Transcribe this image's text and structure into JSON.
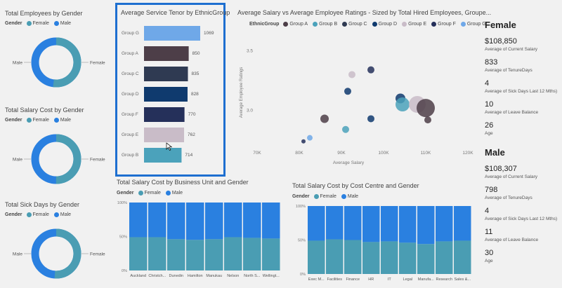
{
  "colors": {
    "female": "#4a9db3",
    "male": "#2a80e0",
    "accent": "#1e6fd0"
  },
  "donuts": [
    {
      "title": "Total Employees by Gender",
      "legend_title": "Gender",
      "legend": [
        "Female",
        "Male"
      ],
      "labels": {
        "left": "Male",
        "right": "Female"
      },
      "female_share": 0.52
    },
    {
      "title": "Total Salary Cost by Gender",
      "legend_title": "Gender",
      "legend": [
        "Female",
        "Male"
      ],
      "labels": {
        "left": "Male",
        "right": "Female"
      },
      "female_share": 0.5
    },
    {
      "title": "Total Sick Days by Gender",
      "legend_title": "Gender",
      "legend": [
        "Female",
        "Male"
      ],
      "labels": {
        "left": "Male",
        "right": "Female"
      },
      "female_share": 0.51
    }
  ],
  "bar_chart": {
    "title": "Average Service Tenor by EthnicGroup",
    "categories": [
      "Group G",
      "Group A",
      "Group C",
      "Group D",
      "Group F",
      "Group E",
      "Group B"
    ],
    "values": [
      1069,
      850,
      835,
      828,
      770,
      762,
      714
    ],
    "colors": [
      "#6fa8e8",
      "#4d3e48",
      "#2f3a52",
      "#0f3a6e",
      "#25305a",
      "#c9bcc8",
      "#4ba2bb"
    ]
  },
  "scatter": {
    "title": "Average Salary vs Average Employee Ratings - Sized by Total Hired Employees, Groupe...",
    "legend_title": "EthnicGroup",
    "legend": [
      {
        "name": "Group A",
        "color": "#4d3e48"
      },
      {
        "name": "Group B",
        "color": "#4ba2bb"
      },
      {
        "name": "Group C",
        "color": "#2f3a52"
      },
      {
        "name": "Group D",
        "color": "#0f3a6e"
      },
      {
        "name": "Group E",
        "color": "#c9bcc8"
      },
      {
        "name": "Group F",
        "color": "#25305a"
      },
      {
        "name": "Group G",
        "color": "#6fa8e8"
      }
    ],
    "xlabel": "Average Salary",
    "ylabel": "Average Employee Ratings",
    "xticks": [
      "70K",
      "80K",
      "90K",
      "100K",
      "110K",
      "120K"
    ],
    "yticks": [
      "3.5",
      "3.0"
    ],
    "points": [
      {
        "x": 81000,
        "y": 2.74,
        "r": 3,
        "c": "#25305a"
      },
      {
        "x": 82500,
        "y": 2.77,
        "r": 4,
        "c": "#6fa8e8"
      },
      {
        "x": 86000,
        "y": 2.93,
        "r": 6,
        "c": "#4d3e48"
      },
      {
        "x": 91000,
        "y": 2.84,
        "r": 5,
        "c": "#4ba2bb"
      },
      {
        "x": 91500,
        "y": 3.16,
        "r": 5,
        "c": "#0f3a6e"
      },
      {
        "x": 92500,
        "y": 3.3,
        "r": 5,
        "c": "#c9bcc8"
      },
      {
        "x": 97000,
        "y": 3.34,
        "r": 5,
        "c": "#25305a"
      },
      {
        "x": 97000,
        "y": 2.93,
        "r": 5,
        "c": "#0f3a6e"
      },
      {
        "x": 104000,
        "y": 3.1,
        "r": 7,
        "c": "#0f3a6e"
      },
      {
        "x": 104500,
        "y": 3.05,
        "r": 10,
        "c": "#4ba2bb"
      },
      {
        "x": 108000,
        "y": 3.05,
        "r": 12,
        "c": "#c9bcc8"
      },
      {
        "x": 110000,
        "y": 3.02,
        "r": 13,
        "c": "#4d3e48"
      },
      {
        "x": 110500,
        "y": 2.92,
        "r": 5,
        "c": "#4d3e48"
      }
    ],
    "xlim": [
      70000,
      120000
    ],
    "ylim": [
      2.68,
      3.62
    ]
  },
  "stack_bu": {
    "title": "Total Salary Cost by Business Unit and Gender",
    "legend_title": "Gender",
    "legend": [
      "Female",
      "Male"
    ],
    "yticks": [
      "100%",
      "50%",
      "0%"
    ],
    "categories": [
      "Auckland",
      "Christch...",
      "Dunedin",
      "Hamilton",
      "Manukau",
      "Nelson",
      "North S...",
      "Wellingt..."
    ],
    "female": [
      0.49,
      0.49,
      0.46,
      0.45,
      0.46,
      0.49,
      0.48,
      0.47
    ]
  },
  "stack_cc": {
    "title": "Total Salary Cost by Cost Centre and Gender",
    "legend_title": "Gender",
    "legend": [
      "Female",
      "Male"
    ],
    "yticks": [
      "100%",
      "50%",
      "0%"
    ],
    "categories": [
      "Exec M...",
      "Facilities",
      "Finance",
      "HR",
      "IT",
      "Legal",
      "Manufa...",
      "Research",
      "Sales &..."
    ],
    "female": [
      0.49,
      0.51,
      0.5,
      0.47,
      0.48,
      0.46,
      0.44,
      0.48,
      0.49
    ]
  },
  "kpi": [
    {
      "gender": "Female",
      "items": [
        {
          "value": "$108,850",
          "label": "Average of Current Salary"
        },
        {
          "value": "833",
          "label": "Average of TenureDays"
        },
        {
          "value": "4",
          "label": "Average of Sick Days Last 12 Mths)"
        },
        {
          "value": "10",
          "label": "Average of Leave Balance"
        },
        {
          "value": "26",
          "label": "Age"
        }
      ]
    },
    {
      "gender": "Male",
      "items": [
        {
          "value": "$108,307",
          "label": "Average of Current Salary"
        },
        {
          "value": "798",
          "label": "Average of TenureDays"
        },
        {
          "value": "4",
          "label": "Average of Sick Days Last 12 Mths)"
        },
        {
          "value": "11",
          "label": "Average of Leave Balance"
        },
        {
          "value": "30",
          "label": "Age"
        }
      ]
    }
  ]
}
